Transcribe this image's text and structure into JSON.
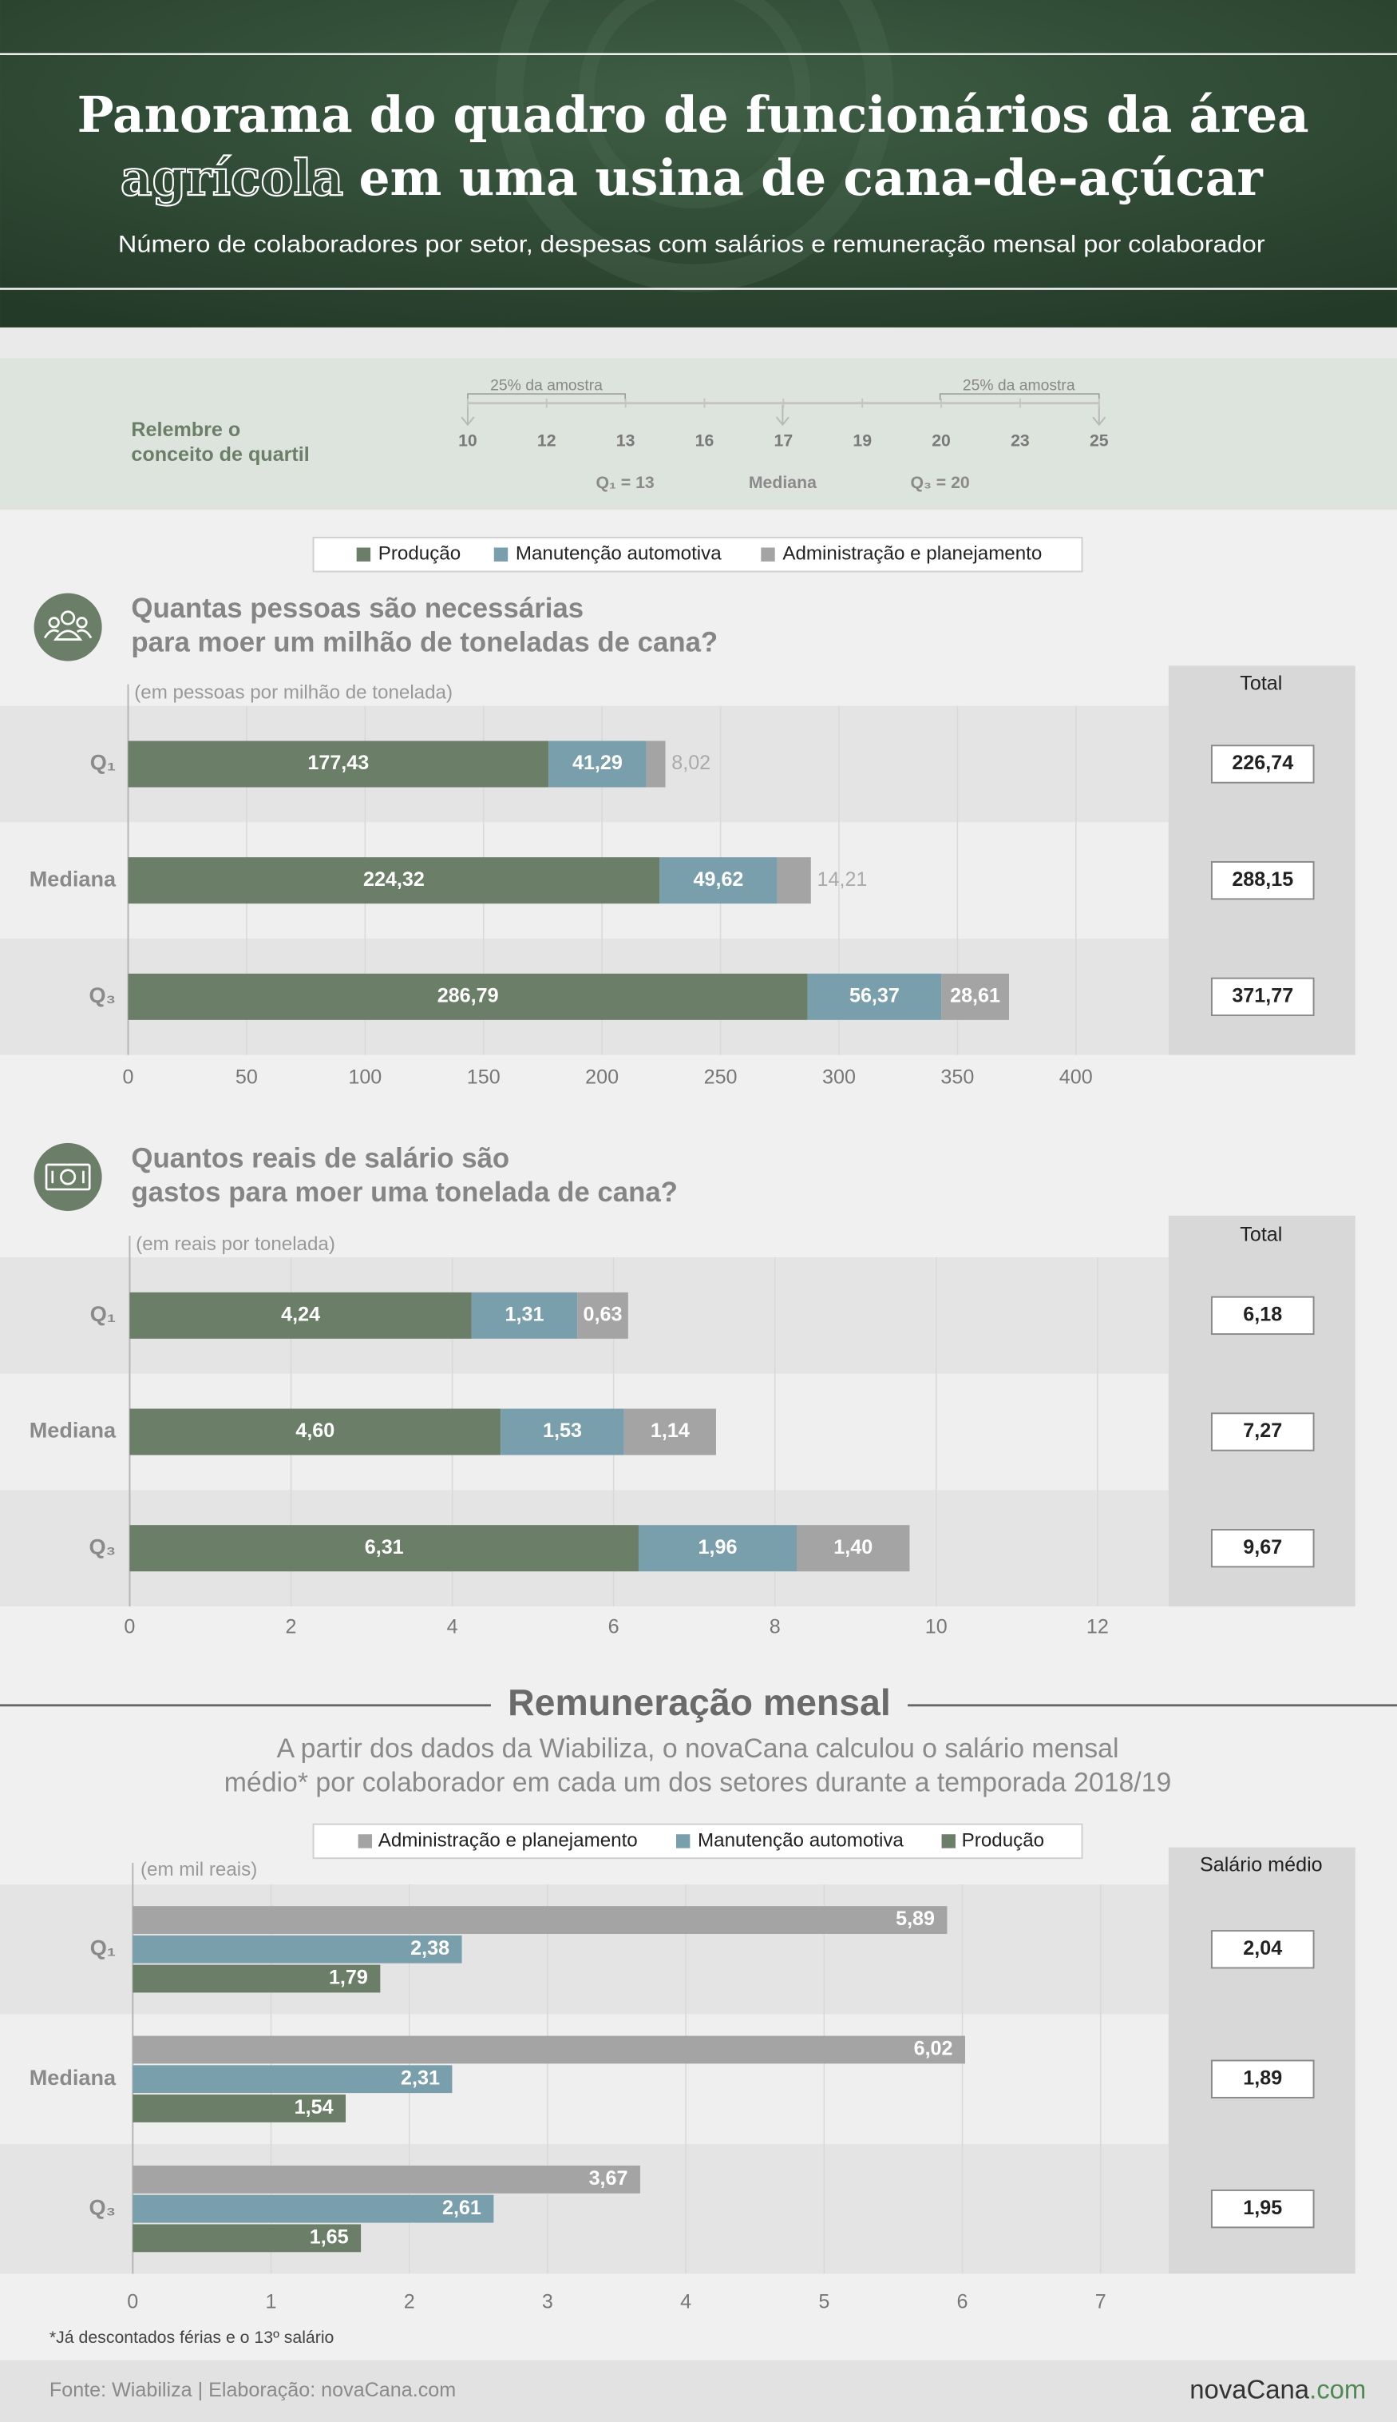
{
  "header": {
    "title_line1": "Panorama do quadro de funcionários da área",
    "title_line2_outlined": "agrícola",
    "title_line2_rest": "em uma usina de cana-de-açúcar",
    "subtitle": "Número de colaboradores por setor, despesas com salários e remuneração mensal por colaborador"
  },
  "quartile": {
    "label_lines": [
      "Relembre o",
      "conceito de quartil"
    ],
    "scale": [
      10,
      12,
      13,
      16,
      17,
      19,
      20,
      23,
      25
    ],
    "sample_labels": [
      "25% da amostra",
      "25% da amostra"
    ],
    "q1": "Q₁ = 13",
    "median": "Mediana",
    "q3": "Q₃ = 20"
  },
  "chart_data": [
    {
      "type": "stacked_bar",
      "title_lines": [
        "Quantas pessoas são necessárias",
        "para moer um milhão de toneladas de cana?"
      ],
      "unit": "(em pessoas por milhão de tonelada)",
      "categories": [
        "Q₁",
        "Mediana",
        "Q₃"
      ],
      "series": [
        {
          "name": "Produção",
          "color": "#6b7f68",
          "values": [
            177.43,
            224.32,
            286.79
          ],
          "value_labels": [
            "177,43",
            "224,32",
            "286,79"
          ]
        },
        {
          "name": "Manutenção automotiva",
          "color": "#7a9fac",
          "values": [
            41.29,
            49.62,
            56.37
          ],
          "value_labels": [
            "41,29",
            "49,62",
            "56,37"
          ]
        },
        {
          "name": "Administração e planejamento",
          "color": "#a4a4a4",
          "values": [
            8.02,
            14.21,
            28.61
          ],
          "value_labels": [
            "8,02",
            "14,21",
            "28,61"
          ]
        }
      ],
      "xlim": [
        0,
        400
      ],
      "xticks": [
        0,
        50,
        100,
        150,
        200,
        250,
        300,
        350,
        400
      ],
      "grid": true,
      "totals": {
        "title": "Total",
        "values": [
          226.74,
          288.15,
          371.77
        ],
        "value_labels": [
          "226,74",
          "288,15",
          "371,77"
        ]
      }
    },
    {
      "type": "stacked_bar",
      "title_lines": [
        "Quantos reais de salário são",
        "gastos para moer uma tonelada de cana?"
      ],
      "unit": "(em reais por tonelada)",
      "categories": [
        "Q₁",
        "Mediana",
        "Q₃"
      ],
      "series": [
        {
          "color": "#6b7f68",
          "values": [
            4.24,
            4.6,
            6.31
          ],
          "value_labels": [
            "4,24",
            "4,60",
            "6,31"
          ]
        },
        {
          "color": "#7a9fac",
          "values": [
            1.31,
            1.53,
            1.96
          ],
          "value_labels": [
            "1,31",
            "1,53",
            "1,96"
          ]
        },
        {
          "color": "#a4a4a4",
          "values": [
            0.63,
            1.14,
            1.4
          ],
          "value_labels": [
            "0,63",
            "1,14",
            "1,40"
          ]
        }
      ],
      "xlim": [
        0,
        12
      ],
      "xticks": [
        0,
        2,
        4,
        6,
        8,
        10,
        12
      ],
      "grid": true,
      "totals": {
        "title": "Total",
        "values": [
          6.18,
          7.27,
          9.67
        ],
        "value_labels": [
          "6,18",
          "7,27",
          "9,67"
        ]
      }
    },
    {
      "type": "grouped_bar",
      "title": "Remuneração mensal",
      "subtitle_lines": [
        "A partir dos dados da Wiabiliza, o novaCana calculou o salário mensal",
        "médio* por colaborador em cada um dos setores durante a temporada 2018/19"
      ],
      "unit": "(em mil reais)",
      "categories": [
        "Q₁",
        "Mediana",
        "Q₃"
      ],
      "series": [
        {
          "name": "Administração e planejamento",
          "color": "#a4a4a4",
          "values": [
            5.89,
            6.02,
            3.67
          ],
          "value_labels": [
            "5,89",
            "6,02",
            "3,67"
          ]
        },
        {
          "name": "Manutenção automotiva",
          "color": "#7a9fac",
          "values": [
            2.38,
            2.31,
            2.61
          ],
          "value_labels": [
            "2,38",
            "2,31",
            "2,61"
          ]
        },
        {
          "name": "Produção",
          "color": "#6b7f68",
          "values": [
            1.79,
            1.54,
            1.65
          ],
          "value_labels": [
            "1,79",
            "1,54",
            "1,65"
          ]
        }
      ],
      "xlim": [
        0,
        7
      ],
      "xticks": [
        0,
        1,
        2,
        3,
        4,
        5,
        6,
        7
      ],
      "grid": true,
      "totals": {
        "title": "Salário médio",
        "values": [
          2.04,
          1.89,
          1.95
        ],
        "value_labels": [
          "2,04",
          "1,89",
          "1,95"
        ]
      },
      "footnote": "*Já descontados férias e o 13º salário"
    }
  ],
  "footer": {
    "source": "Fonte: Wiabiliza | Elaboração: novaCana.com",
    "logo_main": "novaCana",
    "logo_suffix": ".com"
  }
}
